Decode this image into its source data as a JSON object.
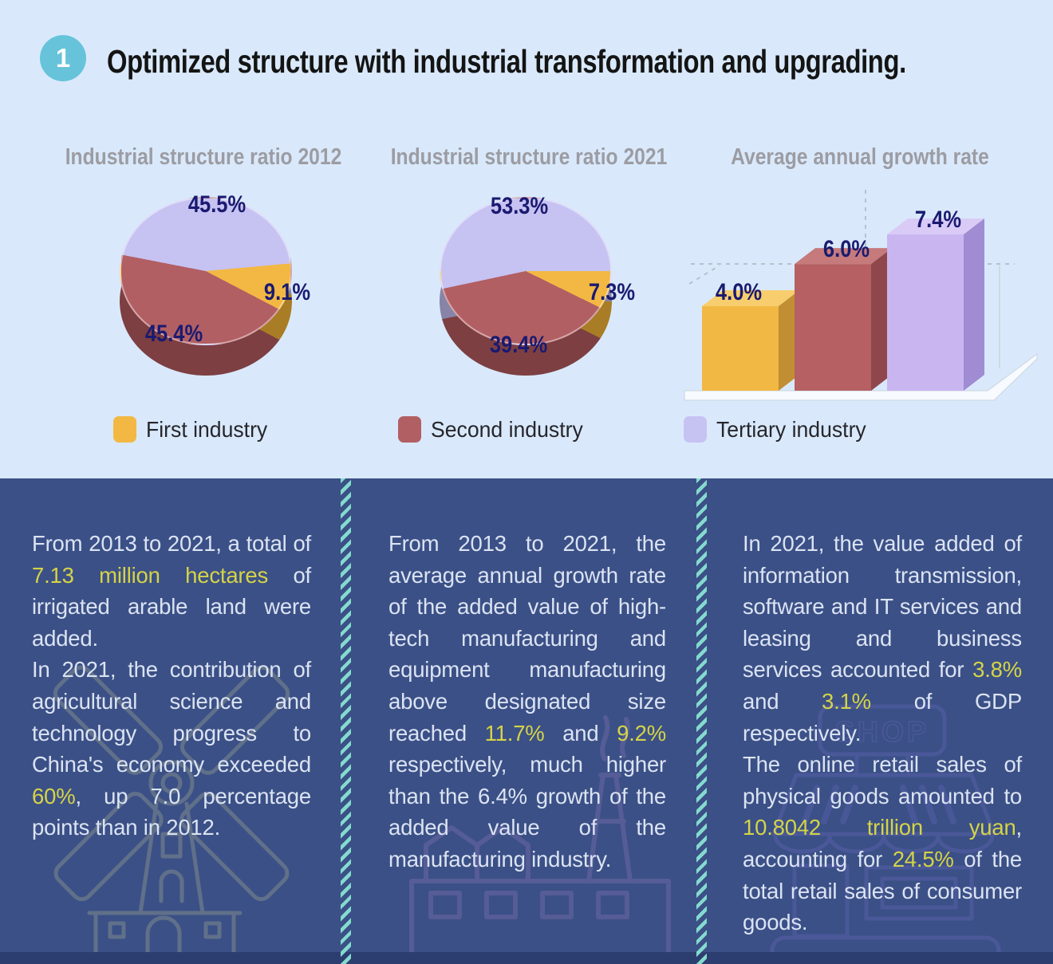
{
  "header": {
    "number": "1",
    "title": "Optimized structure with industrial transformation and upgrading."
  },
  "chart_data": [
    {
      "type": "pie",
      "title": "Industrial structure ratio 2012",
      "start_angle_deg": 281,
      "slices": [
        {
          "label": "Tertiary industry",
          "value": 45.5,
          "display": "45.5%",
          "color": "#c6c2f2"
        },
        {
          "label": "First industry",
          "value": 9.1,
          "display": "9.1%",
          "color": "#f3b843"
        },
        {
          "label": "Second industry",
          "value": 45.4,
          "display": "45.4%",
          "color": "#b25f63"
        }
      ]
    },
    {
      "type": "pie",
      "title": "Industrial structure ratio 2021",
      "start_angle_deg": 258,
      "slices": [
        {
          "label": "Tertiary industry",
          "value": 53.3,
          "display": "53.3%",
          "color": "#c6c2f2"
        },
        {
          "label": "First industry",
          "value": 7.3,
          "display": "7.3%",
          "color": "#f3b843"
        },
        {
          "label": "Second industry",
          "value": 39.4,
          "display": "39.4%",
          "color": "#b25f63"
        }
      ]
    },
    {
      "type": "bar",
      "title": "Average annual growth rate",
      "categories": [
        "First industry",
        "Second industry",
        "Tertiary industry"
      ],
      "values": [
        4.0,
        6.0,
        7.4
      ],
      "displays": [
        "4.0%",
        "6.0%",
        "7.4%"
      ],
      "colors": [
        "#f2b844",
        "#b66063",
        "#c9b6f1"
      ],
      "top_colors": [
        "#f7cd6d",
        "#c67a7c",
        "#d9cbf6"
      ],
      "side_colors": [
        "#c18e33",
        "#8f474b",
        "#9f8cd2"
      ],
      "ylim": [
        0,
        8
      ],
      "unit": "%",
      "grid": "dashed-3d-frame"
    }
  ],
  "legend": {
    "items": [
      {
        "label": "First industry",
        "color": "#f3b843"
      },
      {
        "label": "Second industry",
        "color": "#b25f63"
      },
      {
        "label": "Tertiary industry",
        "color": "#c6c2f2"
      }
    ]
  },
  "panels": [
    {
      "paragraphs": [
        [
          {
            "t": "From 2013 to 2021, a total of "
          },
          {
            "t": "7.13 million hectares",
            "hl": true
          },
          {
            "t": " of irrigated arable land were added."
          }
        ],
        [
          {
            "t": "In 2021, the contribution of agricultural science and technology progress to China's economy exceeded "
          },
          {
            "t": "60%",
            "hl": true
          },
          {
            "t": ", up 7.0 percentage points than in 2012."
          }
        ]
      ]
    },
    {
      "paragraphs": [
        [
          {
            "t": "From 2013 to 2021, the average annual growth rate of the added value of high-tech manufacturing and equipment manufacturing above designated size reached "
          },
          {
            "t": "11.7%",
            "hl": true
          },
          {
            "t": " and "
          },
          {
            "t": "9.2%",
            "hl": true
          },
          {
            "t": " respectively, much higher than the 6.4% growth of the added value of the manufacturing industry."
          }
        ]
      ]
    },
    {
      "sign_text": "SHOP",
      "paragraphs": [
        [
          {
            "t": "In 2021, the value added of information transmission, software and IT services and leasing and business services accounted for "
          },
          {
            "t": "3.8%",
            "hl": true
          },
          {
            "t": " and "
          },
          {
            "t": "3.1%",
            "hl": true
          },
          {
            "t": " of GDP respectively."
          }
        ],
        [
          {
            "t": "The online retail sales of physical goods amounted to "
          },
          {
            "t": "10.8042 trillion yuan",
            "hl": true
          },
          {
            "t": ", accounting for "
          },
          {
            "t": "24.5%",
            "hl": true
          },
          {
            "t": " of the total retail sales of consumer goods."
          }
        ]
      ]
    }
  ],
  "colors": {
    "page_bg": "#d9e9fb",
    "badge": "#66c3da",
    "panel_bg": "#3b5086",
    "footer_strip": "#2c3e70",
    "divider_teal": "#84dace",
    "highlight_yellow": "#d5d348",
    "label_navy": "#1a1a70",
    "chart_title_gray": "#9c9ca3"
  }
}
